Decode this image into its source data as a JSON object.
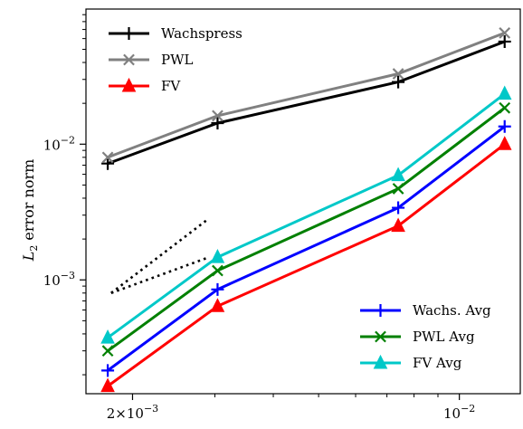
{
  "chart_data": {
    "type": "line",
    "title": "",
    "xlabel": "",
    "ylabel": "L2 error norm",
    "xscale": "log",
    "yscale": "log",
    "xlim": [
      0.00159,
      0.0135
    ],
    "ylim": [
      0.000145,
      0.099
    ],
    "grid": false,
    "x": [
      0.00177,
      0.00304,
      0.0074,
      0.0125
    ],
    "series": [
      {
        "name": "Wachspress",
        "color": "#000000",
        "marker": "plus",
        "values": [
          0.0072,
          0.0143,
          0.0287,
          0.057
        ]
      },
      {
        "name": "PWL",
        "color": "#808080",
        "marker": "x",
        "values": [
          0.008,
          0.0162,
          0.033,
          0.066
        ]
      },
      {
        "name": "FV",
        "color": "#ff0000",
        "marker": "triangle",
        "values": [
          0.000165,
          0.00064,
          0.0025,
          0.01
        ]
      },
      {
        "name": "Wachs. Avg",
        "color": "#0000ff",
        "marker": "plus",
        "values": [
          0.000215,
          0.00085,
          0.0034,
          0.0135
        ]
      },
      {
        "name": "PWL Avg",
        "color": "#008000",
        "marker": "x",
        "values": [
          0.0003,
          0.00117,
          0.0047,
          0.0185
        ]
      },
      {
        "name": "FV Avg",
        "color": "#00c8c8",
        "marker": "triangle",
        "values": [
          0.000375,
          0.00147,
          0.0059,
          0.0235
        ]
      }
    ],
    "reference_lines": [
      {
        "style": "dotted",
        "color": "#000000",
        "x": [
          0.0018,
          0.0029
        ],
        "y": [
          0.0008,
          0.0028
        ]
      },
      {
        "style": "dotted",
        "color": "#000000",
        "x": [
          0.0018,
          0.0029
        ],
        "y": [
          0.0008,
          0.00146
        ]
      }
    ],
    "x_ticks": [
      {
        "value": 0.002,
        "mantissa": "2",
        "exponent": "-3"
      },
      {
        "value": 0.01,
        "mantissa": "",
        "exponent": "-2"
      }
    ],
    "x_minor_ticks": [
      0.003,
      0.004,
      0.005,
      0.006,
      0.007,
      0.008,
      0.009
    ],
    "y_ticks": [
      {
        "value": 0.01,
        "exponent": "-2"
      },
      {
        "value": 0.001,
        "exponent": "-3"
      }
    ],
    "y_minor_ticks": [
      0.0002,
      0.0003,
      0.0004,
      0.0005,
      0.0006,
      0.0007,
      0.0008,
      0.0009,
      0.002,
      0.003,
      0.004,
      0.005,
      0.006,
      0.007,
      0.008,
      0.009,
      0.02,
      0.03,
      0.04,
      0.05,
      0.06,
      0.07,
      0.08,
      0.09
    ],
    "legends": [
      {
        "placement": "upper-left",
        "entries": [
          "Wachspress",
          "PWL",
          "FV"
        ]
      },
      {
        "placement": "lower-right",
        "entries": [
          "Wachs. Avg",
          "PWL Avg",
          "FV Avg"
        ]
      }
    ]
  }
}
